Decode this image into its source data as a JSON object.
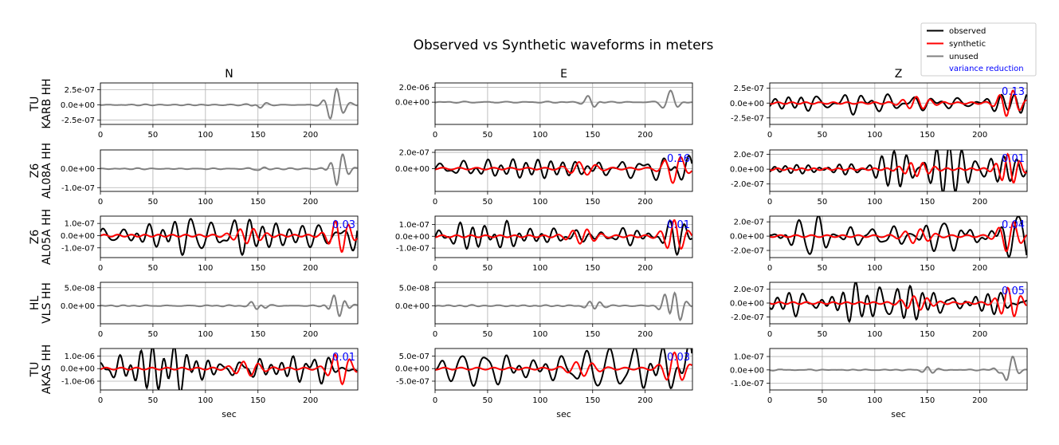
{
  "title": "Observed vs Synthetic waveforms in meters",
  "columns": [
    "N",
    "E",
    "Z"
  ],
  "xlabel": "sec",
  "legend": {
    "position": "top-right",
    "entries": [
      {
        "label": "observed",
        "color": "#000000"
      },
      {
        "label": "synthetic",
        "color": "#ff0000"
      },
      {
        "label": "unused",
        "color": "#808080"
      },
      {
        "label": "variance reduction",
        "color": "#0000ff"
      }
    ]
  },
  "chart_data": {
    "type": "line",
    "grid": true,
    "xlim": [
      0,
      245
    ],
    "xticks": [
      "0",
      "50",
      "100",
      "150",
      "200"
    ],
    "colors": {
      "observed": "#000000",
      "synthetic": "#ff0000",
      "unused": "#808080",
      "vr": "#0000ff"
    },
    "stations": [
      {
        "label": [
          "TU",
          "KARB HH"
        ],
        "panels": [
          {
            "ylim": [
              -3.2e-07,
              3.6e-07
            ],
            "yticks": [
              "2.5e-07",
              "0.0e+00",
              "-2.5e-07"
            ],
            "ytick_values": [
              2.5e-07,
              0,
              -2.5e-07
            ],
            "used": false,
            "amp": 3e-07,
            "vr": "",
            "seed": 11
          },
          {
            "ylim": [
              -3e-06,
              2.6e-06
            ],
            "yticks": [
              "2.0e-06",
              "0.0e+00"
            ],
            "ytick_values": [
              2e-06,
              0
            ],
            "used": false,
            "amp": 2.5e-06,
            "vr": "",
            "seed": 12
          },
          {
            "ylim": [
              -3.6e-07,
              3.4e-07
            ],
            "yticks": [
              "2.5e-07",
              "0.0e+00",
              "-2.5e-07"
            ],
            "ytick_values": [
              2.5e-07,
              0,
              -2.5e-07
            ],
            "used": true,
            "amp": 2.7e-07,
            "vr": "0.13",
            "seed": 13
          }
        ]
      },
      {
        "label": [
          "Z6",
          "AL08A HH"
        ],
        "panels": [
          {
            "ylim": [
              -1.2e-07,
              1e-07
            ],
            "yticks": [
              "0.0e+00",
              "-1.0e-07"
            ],
            "ytick_values": [
              0,
              -1e-07
            ],
            "used": false,
            "amp": 1.1e-07,
            "vr": "",
            "seed": 21
          },
          {
            "ylim": [
              -2.8e-07,
              2.3e-07
            ],
            "yticks": [
              "2.0e-07",
              "0.0e+00"
            ],
            "ytick_values": [
              2e-07,
              0
            ],
            "used": true,
            "amp": 2.1e-07,
            "vr": "0.16",
            "seed": 22
          },
          {
            "ylim": [
              -3e-07,
              2.6e-07
            ],
            "yticks": [
              "2.0e-07",
              "0.0e+00",
              "-2.0e-07"
            ],
            "ytick_values": [
              2e-07,
              0,
              -2e-07
            ],
            "used": true,
            "amp": 2.4e-07,
            "vr": "0.01",
            "seed": 23
          }
        ]
      },
      {
        "label": [
          "Z6",
          "AL05A HH"
        ],
        "panels": [
          {
            "ylim": [
              -1.8e-07,
              1.6e-07
            ],
            "yticks": [
              "1.0e-07",
              "0.0e+00",
              "-1.0e-07"
            ],
            "ytick_values": [
              1e-07,
              0,
              -1e-07
            ],
            "used": true,
            "amp": 1.6e-07,
            "vr": "0.03",
            "seed": 31
          },
          {
            "ylim": [
              -1.8e-07,
              1.7e-07
            ],
            "yticks": [
              "1.0e-07",
              "0.0e+00",
              "-1.0e-07"
            ],
            "ytick_values": [
              1e-07,
              0,
              -1e-07
            ],
            "used": true,
            "amp": 1.6e-07,
            "vr": "0.01",
            "seed": 32
          },
          {
            "ylim": [
              -3e-07,
              2.8e-07
            ],
            "yticks": [
              "2.0e-07",
              "0.0e+00",
              "-2.0e-07"
            ],
            "ytick_values": [
              2e-07,
              0,
              -2e-07
            ],
            "used": true,
            "amp": 2.6e-07,
            "vr": "0.04",
            "seed": 33
          }
        ]
      },
      {
        "label": [
          "HL",
          "VLS HH"
        ],
        "panels": [
          {
            "ylim": [
              -5e-08,
              6.5e-08
            ],
            "yticks": [
              "5.0e-08",
              "0.0e+00"
            ],
            "ytick_values": [
              5e-08,
              0
            ],
            "used": false,
            "amp": 4.8e-08,
            "vr": "",
            "seed": 41
          },
          {
            "ylim": [
              -5e-08,
              6.5e-08
            ],
            "yticks": [
              "5.0e-08",
              "0.0e+00"
            ],
            "ytick_values": [
              5e-08,
              0
            ],
            "used": false,
            "amp": 4.8e-08,
            "vr": "",
            "seed": 42
          },
          {
            "ylim": [
              -3e-07,
              3e-07
            ],
            "yticks": [
              "2.0e-07",
              "0.0e+00",
              "-2.0e-07"
            ],
            "ytick_values": [
              2e-07,
              0,
              -2e-07
            ],
            "used": true,
            "amp": 2.6e-07,
            "vr": "0.05",
            "seed": 43
          }
        ]
      },
      {
        "label": [
          "TU",
          "AKAS HH"
        ],
        "panels": [
          {
            "ylim": [
              -1.7e-06,
              1.6e-06
            ],
            "yticks": [
              "1.0e-06",
              "0.0e+00",
              "-1.0e-06"
            ],
            "ytick_values": [
              1e-06,
              0,
              -1e-06
            ],
            "used": true,
            "amp": 1.5e-06,
            "vr": "0.01",
            "seed": 51
          },
          {
            "ylim": [
              -8.5e-07,
              8e-07
            ],
            "yticks": [
              "5.0e-07",
              "0.0e+00",
              "-5.0e-07"
            ],
            "ytick_values": [
              5e-07,
              0,
              -5e-07
            ],
            "used": true,
            "amp": 7.5e-07,
            "vr": "0.03",
            "seed": 52
          },
          {
            "ylim": [
              -1.5e-07,
              1.6e-07
            ],
            "yticks": [
              "1.0e-07",
              "0.0e+00",
              "-1.0e-07"
            ],
            "ytick_values": [
              1e-07,
              0,
              -1e-07
            ],
            "used": false,
            "amp": 1.5e-07,
            "vr": "",
            "seed": 53
          }
        ]
      }
    ]
  }
}
